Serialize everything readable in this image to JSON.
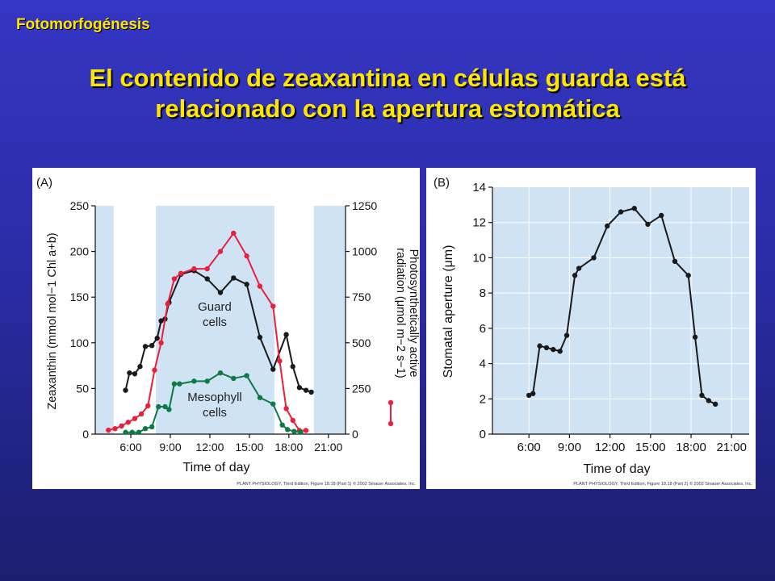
{
  "header": {
    "section_label": "Fotomorfogénesis",
    "title_line1": "El contenido de zeaxantina en células guarda está",
    "title_line2": "relacionado con la apertura estomática"
  },
  "colors": {
    "background": "#2a2ca6",
    "title": "#ffe600",
    "shade": "#cfe3f4",
    "guard": "#1a1a1a",
    "radiation": "#e8203c",
    "mesophyll": "#0c7a45"
  },
  "chart_data": [
    {
      "type": "line",
      "panel_label": "(A)",
      "xlabel": "Time of day",
      "x_ticks": [
        "6:00",
        "9:00",
        "12:00",
        "15:00",
        "18:00",
        "21:00"
      ],
      "x_tick_values": [
        6,
        9,
        12,
        15,
        18,
        21
      ],
      "xlim": [
        3.3,
        22.3
      ],
      "ylabel_left": "Zeaxanthin (mmol mol−1 Chl a+b)",
      "ylim_left": [
        0,
        250
      ],
      "yticks_left": [
        0,
        50,
        100,
        150,
        200,
        250
      ],
      "ylabel_right_line1": "Photosynthetically active",
      "ylabel_right_line2": "radiation (μmol m−2 s−1)",
      "ylim_right": [
        0,
        1250
      ],
      "yticks_right": [
        0,
        250,
        500,
        750,
        1000,
        1250
      ],
      "shaded_bands": [
        [
          3.3,
          4.7
        ],
        [
          7.9,
          16.9
        ],
        [
          19.9,
          22.3
        ]
      ],
      "annotations": {
        "guard_label_1": "Guard",
        "guard_label_2": "cells",
        "meso_label_1": "Mesophyll",
        "meso_label_2": "cells"
      },
      "credit": "PLANT PHYSIOLOGY, Third Edition, Figure 18.18 (Part 1) © 2002 Sinauer Associates, Inc.",
      "series": [
        {
          "name": "Guard cells",
          "axis": "left",
          "x": [
            5.6,
            5.9,
            6.3,
            6.7,
            7.1,
            7.6,
            8.0,
            8.3,
            8.6,
            8.9,
            9.8,
            10.8,
            11.8,
            12.8,
            13.8,
            14.8,
            15.8,
            16.8,
            17.8,
            18.3,
            18.8,
            19.3,
            19.7
          ],
          "y": [
            48,
            67,
            66,
            74,
            96,
            97,
            105,
            124,
            126,
            144,
            175,
            179,
            170,
            155,
            171,
            164,
            106,
            71,
            109,
            74,
            51,
            48,
            46
          ]
        },
        {
          "name": "Photosynthetically active radiation",
          "axis": "right",
          "x": [
            4.3,
            4.8,
            5.3,
            5.8,
            6.3,
            6.8,
            7.3,
            7.8,
            8.3,
            8.8,
            9.3,
            9.8,
            10.8,
            11.8,
            12.8,
            13.8,
            14.8,
            15.8,
            16.8,
            17.3,
            17.8,
            18.3,
            18.8,
            19.3
          ],
          "y": [
            22,
            30,
            45,
            65,
            85,
            110,
            155,
            350,
            500,
            713,
            850,
            880,
            905,
            905,
            1000,
            1100,
            975,
            810,
            700,
            400,
            140,
            75,
            20,
            20
          ]
        },
        {
          "name": "Mesophyll cells",
          "axis": "left",
          "x": [
            5.6,
            6.1,
            6.6,
            7.1,
            7.6,
            8.1,
            8.6,
            8.9,
            9.3,
            9.7,
            10.8,
            11.8,
            12.8,
            13.8,
            14.8,
            15.8,
            16.8,
            17.5,
            17.9,
            18.4,
            18.9
          ],
          "y": [
            2,
            2,
            2,
            6,
            8,
            30,
            30,
            27,
            55,
            55,
            58,
            58,
            67,
            61,
            64,
            40,
            33,
            10,
            5,
            3,
            2
          ]
        }
      ]
    },
    {
      "type": "line",
      "panel_label": "(B)",
      "xlabel": "Time of day",
      "x_ticks": [
        "6:00",
        "9:00",
        "12:00",
        "15:00",
        "18:00",
        "21:00"
      ],
      "x_tick_values": [
        6,
        9,
        12,
        15,
        18,
        21
      ],
      "xlim": [
        3.3,
        22.3
      ],
      "ylabel": "Stomatal aperture (μm)",
      "ylim": [
        0,
        14
      ],
      "yticks": [
        0,
        2,
        4,
        6,
        8,
        10,
        12,
        14
      ],
      "credit": "PLANT PHYSIOLOGY, Third Edition, Figure 18.18 (Part 2) © 2002 Sinauer Associates, Inc.",
      "series": [
        {
          "name": "Stomatal aperture",
          "x": [
            6.0,
            6.3,
            6.8,
            7.3,
            7.8,
            8.3,
            8.8,
            9.4,
            9.7,
            10.8,
            11.8,
            12.8,
            13.8,
            14.8,
            15.8,
            16.8,
            17.8,
            18.3,
            18.8,
            19.3,
            19.8
          ],
          "y": [
            2.2,
            2.3,
            5.0,
            4.9,
            4.8,
            4.7,
            5.6,
            9.0,
            9.4,
            10.0,
            11.8,
            12.6,
            12.8,
            11.9,
            12.4,
            9.8,
            9.0,
            5.5,
            2.2,
            1.9,
            1.7
          ]
        }
      ]
    }
  ]
}
